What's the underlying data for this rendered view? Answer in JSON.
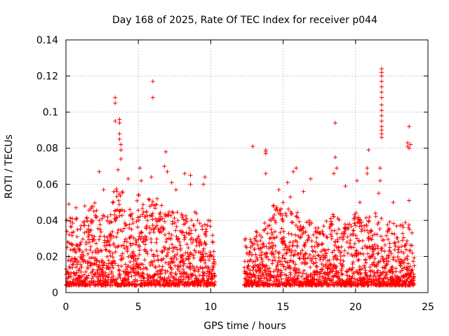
{
  "chart_data": {
    "type": "scatter",
    "title": "Day 168 of 2025, Rate Of TEC Index for receiver p044",
    "xlabel": "GPS time / hours",
    "ylabel": "ROTI / TECUs",
    "xlim": [
      0,
      25
    ],
    "ylim": [
      0,
      0.14
    ],
    "xticks": [
      0,
      5,
      10,
      15,
      20,
      25
    ],
    "yticks": [
      0,
      0.02,
      0.04,
      0.06,
      0.08,
      0.1,
      0.12,
      0.14
    ],
    "xtick_labels": [
      "0",
      "5",
      "10",
      "15",
      "20",
      "25"
    ],
    "ytick_labels": [
      "0",
      "0.02",
      "0.04",
      "0.06",
      "0.08",
      "0.1",
      "0.12",
      "0.14"
    ],
    "grid": true,
    "marker": "+",
    "color": "#ff0000",
    "data_gap_hours": [
      10.3,
      12.3
    ],
    "series": [
      {
        "name": "p044 ROTI",
        "envelope_x": [
          0,
          0.5,
          1,
          1.5,
          2,
          2.5,
          3,
          3.5,
          4,
          4.5,
          5,
          5.5,
          6,
          6.5,
          7,
          7.5,
          8,
          8.5,
          9,
          9.5,
          10,
          10.3,
          12.3,
          13,
          13.5,
          14,
          14.5,
          15,
          15.5,
          16,
          16.5,
          17,
          17.5,
          18,
          18.5,
          19,
          19.5,
          20,
          20.5,
          21,
          21.5,
          22,
          22.5,
          23,
          23.5,
          24
        ],
        "envelope_top": [
          0.04,
          0.045,
          0.04,
          0.045,
          0.05,
          0.045,
          0.05,
          0.06,
          0.055,
          0.045,
          0.055,
          0.05,
          0.055,
          0.05,
          0.045,
          0.045,
          0.045,
          0.045,
          0.045,
          0.04,
          0.04,
          0.03,
          0.03,
          0.035,
          0.035,
          0.045,
          0.05,
          0.05,
          0.045,
          0.045,
          0.04,
          0.04,
          0.035,
          0.04,
          0.045,
          0.04,
          0.04,
          0.045,
          0.04,
          0.045,
          0.045,
          0.04,
          0.04,
          0.04,
          0.04,
          0.035
        ],
        "outliers": [
          [
            0.2,
            0.049
          ],
          [
            0.7,
            0.047
          ],
          [
            1.3,
            0.048
          ],
          [
            2.3,
            0.067
          ],
          [
            2.6,
            0.057
          ],
          [
            3.4,
            0.108
          ],
          [
            3.4,
            0.105
          ],
          [
            3.4,
            0.095
          ],
          [
            3.7,
            0.096
          ],
          [
            3.7,
            0.094
          ],
          [
            3.7,
            0.088
          ],
          [
            3.7,
            0.085
          ],
          [
            3.8,
            0.082
          ],
          [
            3.8,
            0.079
          ],
          [
            3.8,
            0.074
          ],
          [
            3.6,
            0.068
          ],
          [
            4.3,
            0.063
          ],
          [
            5.1,
            0.069
          ],
          [
            5.2,
            0.062
          ],
          [
            5.9,
            0.064
          ],
          [
            6.0,
            0.117
          ],
          [
            6.0,
            0.108
          ],
          [
            6.3,
            0.052
          ],
          [
            6.9,
            0.078
          ],
          [
            6.8,
            0.07
          ],
          [
            7.0,
            0.067
          ],
          [
            7.3,
            0.061
          ],
          [
            7.6,
            0.057
          ],
          [
            8.2,
            0.066
          ],
          [
            8.6,
            0.065
          ],
          [
            8.6,
            0.06
          ],
          [
            9.6,
            0.064
          ],
          [
            9.5,
            0.06
          ],
          [
            12.9,
            0.081
          ],
          [
            13.8,
            0.079
          ],
          [
            13.8,
            0.078
          ],
          [
            13.8,
            0.077
          ],
          [
            13.8,
            0.066
          ],
          [
            14.7,
            0.057
          ],
          [
            15.3,
            0.061
          ],
          [
            15.7,
            0.067
          ],
          [
            15.9,
            0.069
          ],
          [
            15.5,
            0.053
          ],
          [
            16.4,
            0.056
          ],
          [
            16.9,
            0.063
          ],
          [
            18.5,
            0.066
          ],
          [
            18.6,
            0.094
          ],
          [
            18.6,
            0.075
          ],
          [
            18.7,
            0.069
          ],
          [
            19.3,
            0.059
          ],
          [
            20.1,
            0.062
          ],
          [
            20.3,
            0.05
          ],
          [
            20.9,
            0.079
          ],
          [
            20.8,
            0.069
          ],
          [
            20.8,
            0.066
          ],
          [
            21.6,
            0.055
          ],
          [
            21.8,
            0.124
          ],
          [
            21.8,
            0.122
          ],
          [
            21.8,
            0.12
          ],
          [
            21.8,
            0.117
          ],
          [
            21.8,
            0.114
          ],
          [
            21.8,
            0.111
          ],
          [
            21.8,
            0.108
          ],
          [
            21.8,
            0.104
          ],
          [
            21.8,
            0.101
          ],
          [
            21.8,
            0.098
          ],
          [
            21.8,
            0.095
          ],
          [
            21.8,
            0.092
          ],
          [
            21.8,
            0.09
          ],
          [
            21.8,
            0.088
          ],
          [
            21.8,
            0.086
          ],
          [
            21.7,
            0.069
          ],
          [
            21.7,
            0.062
          ],
          [
            22.6,
            0.05
          ],
          [
            23.7,
            0.092
          ],
          [
            23.6,
            0.083
          ],
          [
            23.6,
            0.081
          ],
          [
            23.8,
            0.082
          ],
          [
            23.7,
            0.08
          ],
          [
            23.7,
            0.051
          ]
        ]
      }
    ]
  }
}
